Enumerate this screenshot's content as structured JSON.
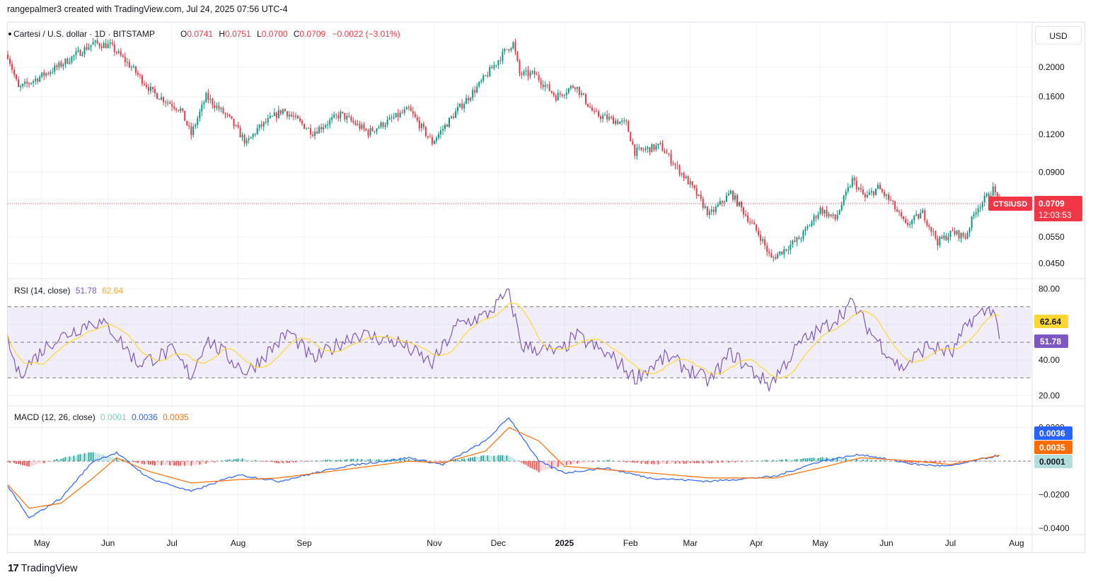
{
  "header": {
    "caption": "rangepalmer3 created with TradingView.com, Jul 24, 2025 07:56 UTC-4",
    "symbol_title": "Cartesi / U.S. dollar · 1D · BITSTAMP",
    "ohlc": {
      "o_label": "O",
      "o_value": "0.0741",
      "h_label": "H",
      "h_value": "0.0751",
      "l_label": "L",
      "l_value": "0.0700",
      "c_label": "C",
      "c_value": "0.0709",
      "change": "−0.0022 (−3.01%)"
    },
    "currency_button": "USD"
  },
  "colors": {
    "up": "#089981",
    "down": "#f23645",
    "rsi_line": "#7e57c2",
    "rsi_ma": "#fdd835",
    "macd_line": "#2962ff",
    "signal_line": "#ff6d00",
    "hist_up_strong": "#26a69a",
    "hist_up_weak": "#b2dfdb",
    "hist_down_strong": "#ff5252",
    "hist_down_weak": "#ffcdd2",
    "grid": "#f0f3fa"
  },
  "chart_data": [
    {
      "type": "candlestick",
      "title": "Cartesi / U.S. dollar · 1D · BITSTAMP",
      "scale": "log",
      "ylim": [
        0.0405,
        0.275
      ],
      "y_ticks": [
        "0.2000",
        "0.1600",
        "0.1200",
        "0.0900",
        "0.0550",
        "0.0450"
      ],
      "x_ticks": [
        "May",
        "Jun",
        "Jul",
        "Aug",
        "Sep",
        "Nov",
        "Dec",
        "2025",
        "Feb",
        "Mar",
        "Apr",
        "May",
        "Jun",
        "Jul",
        "Aug"
      ],
      "x_range": [
        "2024-04-15",
        "2025-08-08"
      ],
      "last_price": {
        "symbol": "CTSIUSD",
        "price": "0.0709",
        "countdown": "12:03:53"
      },
      "key_closes": [
        {
          "date": "2024-04-15",
          "close": 0.22
        },
        {
          "date": "2024-04-20",
          "close": 0.17
        },
        {
          "date": "2024-05-08",
          "close": 0.2
        },
        {
          "date": "2024-05-25",
          "close": 0.24
        },
        {
          "date": "2024-06-02",
          "close": 0.236
        },
        {
          "date": "2024-06-12",
          "close": 0.2
        },
        {
          "date": "2024-06-22",
          "close": 0.165
        },
        {
          "date": "2024-07-05",
          "close": 0.145
        },
        {
          "date": "2024-07-10",
          "close": 0.12
        },
        {
          "date": "2024-07-17",
          "close": 0.16
        },
        {
          "date": "2024-07-28",
          "close": 0.135
        },
        {
          "date": "2024-08-05",
          "close": 0.112
        },
        {
          "date": "2024-08-10",
          "close": 0.125
        },
        {
          "date": "2024-08-22",
          "close": 0.145
        },
        {
          "date": "2024-09-05",
          "close": 0.122
        },
        {
          "date": "2024-09-18",
          "close": 0.14
        },
        {
          "date": "2024-10-01",
          "close": 0.122
        },
        {
          "date": "2024-10-20",
          "close": 0.145
        },
        {
          "date": "2024-10-31",
          "close": 0.113
        },
        {
          "date": "2024-11-12",
          "close": 0.145
        },
        {
          "date": "2024-11-22",
          "close": 0.175
        },
        {
          "date": "2024-12-05",
          "close": 0.23
        },
        {
          "date": "2024-12-08",
          "close": 0.24
        },
        {
          "date": "2024-12-11",
          "close": 0.19
        },
        {
          "date": "2024-12-18",
          "close": 0.19
        },
        {
          "date": "2024-12-28",
          "close": 0.16
        },
        {
          "date": "2025-01-06",
          "close": 0.175
        },
        {
          "date": "2025-01-15",
          "close": 0.14
        },
        {
          "date": "2025-01-30",
          "close": 0.13
        },
        {
          "date": "2025-02-03",
          "close": 0.105
        },
        {
          "date": "2025-02-15",
          "close": 0.11
        },
        {
          "date": "2025-03-01",
          "close": 0.082
        },
        {
          "date": "2025-03-10",
          "close": 0.065
        },
        {
          "date": "2025-03-20",
          "close": 0.077
        },
        {
          "date": "2025-04-03",
          "close": 0.055
        },
        {
          "date": "2025-04-08",
          "close": 0.0465
        },
        {
          "date": "2025-04-22",
          "close": 0.055
        },
        {
          "date": "2025-05-01",
          "close": 0.068
        },
        {
          "date": "2025-05-08",
          "close": 0.063
        },
        {
          "date": "2025-05-16",
          "close": 0.085
        },
        {
          "date": "2025-05-22",
          "close": 0.074
        },
        {
          "date": "2025-05-28",
          "close": 0.08
        },
        {
          "date": "2025-06-03",
          "close": 0.072
        },
        {
          "date": "2025-06-10",
          "close": 0.06
        },
        {
          "date": "2025-06-18",
          "close": 0.066
        },
        {
          "date": "2025-06-25",
          "close": 0.053
        },
        {
          "date": "2025-07-02",
          "close": 0.057
        },
        {
          "date": "2025-07-08",
          "close": 0.055
        },
        {
          "date": "2025-07-13",
          "close": 0.068
        },
        {
          "date": "2025-07-21",
          "close": 0.079
        },
        {
          "date": "2025-07-23",
          "close": 0.0741
        },
        {
          "date": "2025-07-24",
          "close": 0.0709
        }
      ]
    },
    {
      "type": "line",
      "title": "RSI (14, close)",
      "value_rsi": "51.78",
      "value_ma": "62.64",
      "ylim": [
        15,
        85
      ],
      "y_ticks": [
        "80.00",
        "60.00",
        "40.00",
        "20.00"
      ],
      "bands": [
        30,
        50,
        70
      ],
      "rsi_keypoints": [
        {
          "date": "2024-04-15",
          "value": 50
        },
        {
          "date": "2024-04-20",
          "value": 32
        },
        {
          "date": "2024-05-05",
          "value": 50
        },
        {
          "date": "2024-05-25",
          "value": 62
        },
        {
          "date": "2024-06-02",
          "value": 58
        },
        {
          "date": "2024-06-15",
          "value": 38
        },
        {
          "date": "2024-07-01",
          "value": 45
        },
        {
          "date": "2024-07-10",
          "value": 31
        },
        {
          "date": "2024-07-17",
          "value": 52
        },
        {
          "date": "2024-08-05",
          "value": 33
        },
        {
          "date": "2024-08-25",
          "value": 56
        },
        {
          "date": "2024-09-05",
          "value": 40
        },
        {
          "date": "2024-09-25",
          "value": 55
        },
        {
          "date": "2024-10-15",
          "value": 50
        },
        {
          "date": "2024-10-31",
          "value": 38
        },
        {
          "date": "2024-11-12",
          "value": 60
        },
        {
          "date": "2024-11-25",
          "value": 65
        },
        {
          "date": "2024-12-06",
          "value": 78
        },
        {
          "date": "2024-12-12",
          "value": 48
        },
        {
          "date": "2024-12-30",
          "value": 44
        },
        {
          "date": "2025-01-06",
          "value": 54
        },
        {
          "date": "2025-01-25",
          "value": 40
        },
        {
          "date": "2025-02-03",
          "value": 30
        },
        {
          "date": "2025-02-18",
          "value": 42
        },
        {
          "date": "2025-03-10",
          "value": 28
        },
        {
          "date": "2025-03-20",
          "value": 44
        },
        {
          "date": "2025-04-07",
          "value": 26
        },
        {
          "date": "2025-04-22",
          "value": 50
        },
        {
          "date": "2025-05-05",
          "value": 60
        },
        {
          "date": "2025-05-16",
          "value": 72
        },
        {
          "date": "2025-05-25",
          "value": 55
        },
        {
          "date": "2025-06-08",
          "value": 35
        },
        {
          "date": "2025-06-20",
          "value": 48
        },
        {
          "date": "2025-07-02",
          "value": 44
        },
        {
          "date": "2025-07-10",
          "value": 62
        },
        {
          "date": "2025-07-21",
          "value": 70
        },
        {
          "date": "2025-07-24",
          "value": 51.78
        }
      ]
    },
    {
      "type": "line+histogram",
      "title": "MACD (12, 26, close)",
      "value_hist": "0.0001",
      "value_macd": "0.0036",
      "value_signal": "0.0035",
      "ylim": [
        -0.042,
        0.032
      ],
      "y_ticks": [
        "0.0200",
        "−0.0200",
        "−0.0400"
      ],
      "macd_keypoints": [
        {
          "date": "2024-04-15",
          "macd": -0.015,
          "signal": -0.014
        },
        {
          "date": "2024-04-25",
          "macd": -0.034,
          "signal": -0.028
        },
        {
          "date": "2024-05-10",
          "macd": -0.022,
          "signal": -0.025
        },
        {
          "date": "2024-05-25",
          "macd": 0.0,
          "signal": -0.01
        },
        {
          "date": "2024-06-05",
          "macd": 0.005,
          "signal": 0.002
        },
        {
          "date": "2024-06-20",
          "macd": -0.01,
          "signal": -0.006
        },
        {
          "date": "2024-07-10",
          "macd": -0.018,
          "signal": -0.013
        },
        {
          "date": "2024-08-01",
          "macd": -0.008,
          "signal": -0.011
        },
        {
          "date": "2024-08-20",
          "macd": -0.012,
          "signal": -0.01
        },
        {
          "date": "2024-09-20",
          "macd": -0.003,
          "signal": -0.005
        },
        {
          "date": "2024-10-20",
          "macd": 0.002,
          "signal": 0.0
        },
        {
          "date": "2024-11-05",
          "macd": -0.002,
          "signal": -0.001
        },
        {
          "date": "2024-11-25",
          "macd": 0.012,
          "signal": 0.006
        },
        {
          "date": "2024-12-06",
          "macd": 0.026,
          "signal": 0.02
        },
        {
          "date": "2024-12-20",
          "macd": 0.0,
          "signal": 0.012
        },
        {
          "date": "2025-01-01",
          "macd": -0.007,
          "signal": -0.003
        },
        {
          "date": "2025-01-20",
          "macd": -0.004,
          "signal": -0.005
        },
        {
          "date": "2025-02-10",
          "macd": -0.01,
          "signal": -0.007
        },
        {
          "date": "2025-03-10",
          "macd": -0.012,
          "signal": -0.01
        },
        {
          "date": "2025-04-10",
          "macd": -0.009,
          "signal": -0.01
        },
        {
          "date": "2025-05-01",
          "macd": 0.0,
          "signal": -0.004
        },
        {
          "date": "2025-05-20",
          "macd": 0.004,
          "signal": 0.002
        },
        {
          "date": "2025-06-15",
          "macd": -0.002,
          "signal": 0.0
        },
        {
          "date": "2025-07-01",
          "macd": -0.003,
          "signal": -0.002
        },
        {
          "date": "2025-07-24",
          "macd": 0.0036,
          "signal": 0.0035
        }
      ]
    }
  ]
}
